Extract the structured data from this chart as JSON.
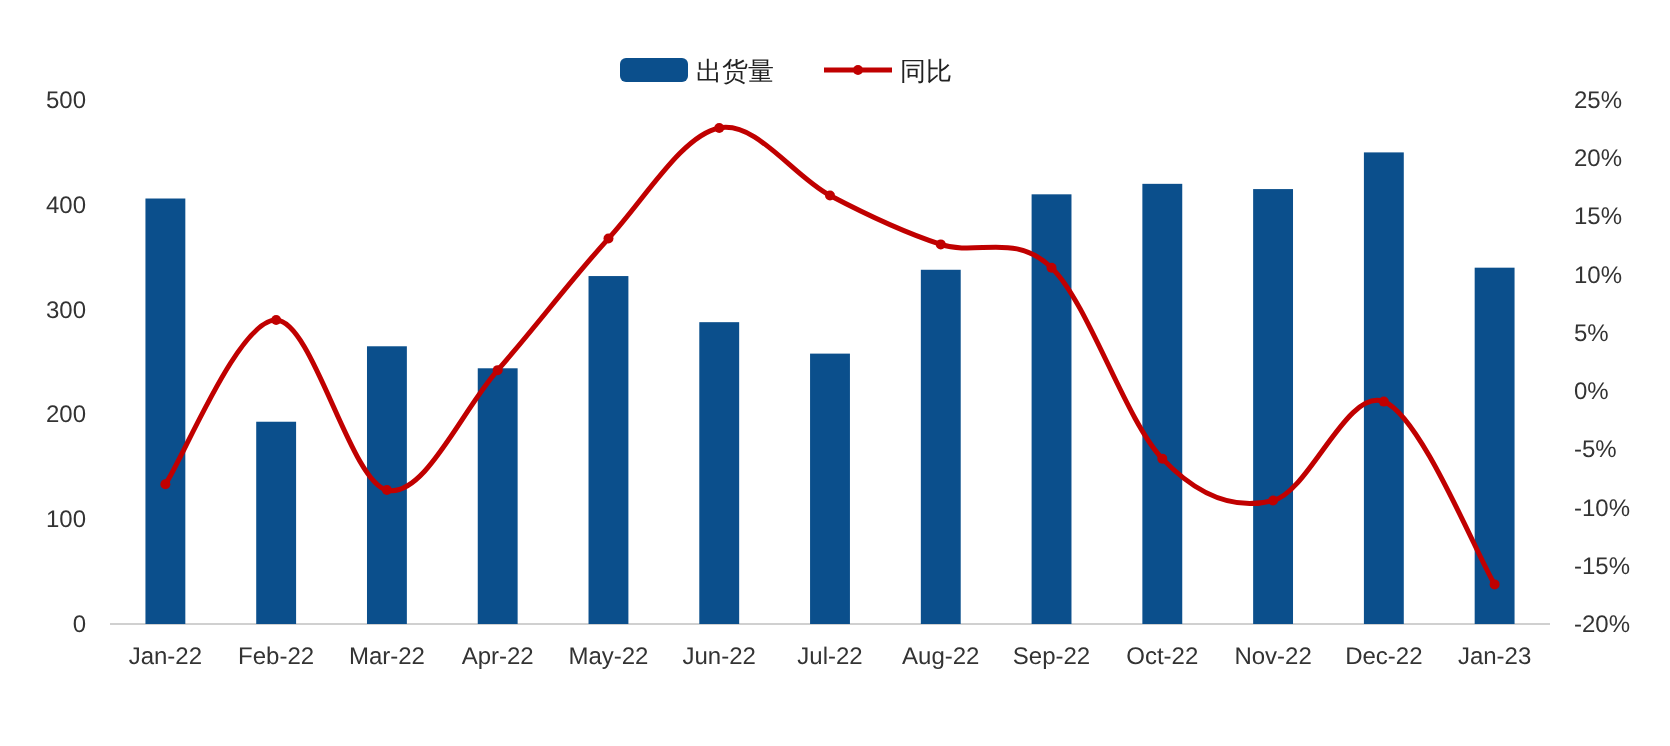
{
  "chart_data": {
    "type": "bar",
    "categories": [
      "Jan-22",
      "Feb-22",
      "Mar-22",
      "Apr-22",
      "May-22",
      "Jun-22",
      "Jul-22",
      "Aug-22",
      "Sep-22",
      "Oct-22",
      "Nov-22",
      "Dec-22",
      "Jan-23"
    ],
    "series": [
      {
        "name": "出货量",
        "color": "#0b4f8c",
        "values": [
          406,
          193,
          265,
          244,
          332,
          288,
          258,
          338,
          410,
          420,
          415,
          450,
          340
        ]
      },
      {
        "name": "同比",
        "type": "line",
        "axis": "y2",
        "color": "#c00000",
        "marker": "circle",
        "values": [
          -8,
          6.1,
          -8.5,
          1.8,
          13.1,
          22.6,
          16.8,
          12.6,
          10.6,
          -5.8,
          -9.4,
          -0.9,
          -16.6
        ]
      }
    ],
    "ylim": [
      0,
      500
    ],
    "yticks": [
      0,
      100,
      200,
      300,
      400,
      500
    ],
    "y2lim": [
      -20,
      25
    ],
    "y2ticks": [
      {
        "value": -20,
        "label": "-20%"
      },
      {
        "value": -15,
        "label": "-15%"
      },
      {
        "value": -10,
        "label": "-10%"
      },
      {
        "value": -5,
        "label": "-5%"
      },
      {
        "value": 0,
        "label": "0%"
      },
      {
        "value": 5,
        "label": "5%"
      },
      {
        "value": 10,
        "label": "10%"
      },
      {
        "value": 15,
        "label": "15%"
      },
      {
        "value": 20,
        "label": "20%"
      },
      {
        "value": 25,
        "label": "25%"
      }
    ],
    "legend": "top"
  }
}
